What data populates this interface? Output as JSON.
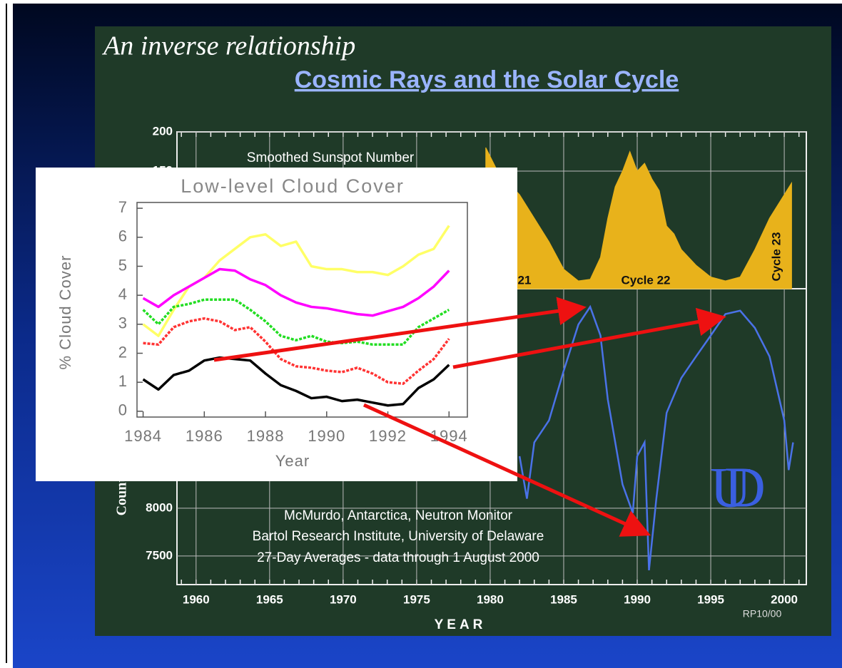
{
  "slide": {
    "title": "An inverse relationship",
    "heading": "Cosmic Rays and the Solar Cycle",
    "logo": "UD"
  },
  "chart_data": [
    {
      "type": "line",
      "title": "Low-level Cloud Cover",
      "x_label": "Year",
      "y_label": "% Cloud Cover",
      "x": [
        1984,
        1984.5,
        1985,
        1985.5,
        1986,
        1986.5,
        1987,
        1987.5,
        1988,
        1988.5,
        1989,
        1989.5,
        1990,
        1990.5,
        1991,
        1991.5,
        1992,
        1992.5,
        1993,
        1993.5,
        1994
      ],
      "xlim": [
        1983.8,
        1994.6
      ],
      "xticks": [
        1984,
        1986,
        1988,
        1990,
        1992,
        1994
      ],
      "ylim": [
        -0.2,
        7.2
      ],
      "yticks": [
        0,
        1,
        2,
        3,
        4,
        5,
        6,
        7
      ],
      "series": [
        {
          "color": "#ffff66",
          "dashed": false,
          "values": [
            3.0,
            2.6,
            3.5,
            4.3,
            4.6,
            5.2,
            5.6,
            6.0,
            6.1,
            5.7,
            5.85,
            5.0,
            4.9,
            4.9,
            4.8,
            4.8,
            4.7,
            5.0,
            5.4,
            5.6,
            6.4
          ]
        },
        {
          "color": "#ff00ff",
          "dashed": false,
          "values": [
            3.9,
            3.6,
            4.0,
            4.3,
            4.6,
            4.9,
            4.85,
            4.55,
            4.35,
            4.0,
            3.75,
            3.6,
            3.55,
            3.45,
            3.35,
            3.3,
            3.45,
            3.6,
            3.9,
            4.3,
            4.85
          ]
        },
        {
          "color": "#22dd22",
          "dashed": true,
          "values": [
            3.5,
            3.0,
            3.6,
            3.7,
            3.85,
            3.85,
            3.85,
            3.5,
            3.1,
            2.6,
            2.45,
            2.6,
            2.4,
            2.35,
            2.4,
            2.3,
            2.3,
            2.3,
            2.9,
            3.2,
            3.5
          ]
        },
        {
          "color": "#ff3333",
          "dashed": true,
          "values": [
            2.35,
            2.3,
            2.9,
            3.1,
            3.2,
            3.1,
            2.8,
            2.9,
            2.4,
            1.8,
            1.55,
            1.5,
            1.4,
            1.35,
            1.5,
            1.3,
            1.0,
            0.95,
            1.4,
            1.8,
            2.5
          ]
        },
        {
          "color": "#000000",
          "dashed": false,
          "values": [
            1.1,
            0.75,
            1.25,
            1.4,
            1.75,
            1.85,
            1.8,
            1.75,
            1.3,
            0.9,
            0.7,
            0.45,
            0.5,
            0.35,
            0.4,
            0.3,
            0.2,
            0.25,
            0.8,
            1.1,
            1.6
          ]
        }
      ]
    },
    {
      "type": "line",
      "x_label": "YEAR",
      "y_label": "Counts/",
      "xlim": [
        1958.7,
        2001.5
      ],
      "xticks": [
        1960,
        1965,
        1970,
        1975,
        1980,
        1985,
        1990,
        1995,
        2000
      ],
      "ylim": [
        0,
        200
      ],
      "yticks": [
        150,
        200
      ],
      "y2lim": [
        7200,
        10300
      ],
      "y2ticks": [
        7500,
        8000
      ],
      "series": [
        {
          "name": "Smoothed Sunspot Number",
          "color": "#e8b21b",
          "fill": true,
          "x": [
            1979.7,
            1980.5,
            1981,
            1982,
            1983,
            1984,
            1985,
            1986,
            1986.8,
            1987.5,
            1988,
            1988.5,
            1989,
            1989.5,
            1990,
            1990.5,
            1991,
            1991.5,
            1992,
            1992.5,
            1993,
            1994,
            1995,
            1996,
            1997,
            1998,
            1999,
            2000,
            2000.5
          ],
          "values": [
            180,
            150,
            140,
            120,
            90,
            60,
            25,
            10,
            12,
            40,
            90,
            130,
            150,
            175,
            150,
            160,
            140,
            125,
            80,
            70,
            50,
            30,
            15,
            10,
            15,
            50,
            90,
            120,
            135
          ]
        },
        {
          "axis": "y2",
          "color": "#4a72e8",
          "fill": false,
          "x": [
            1982,
            1982.5,
            1983,
            1984,
            1985,
            1986,
            1986.8,
            1987.5,
            1988,
            1989,
            1989.7,
            1990,
            1990.5,
            1990.8,
            1991.3,
            1992,
            1993,
            1994,
            1995,
            1996,
            1997,
            1998,
            1999,
            2000,
            2000.3,
            2000.6
          ],
          "values": [
            8545,
            8100,
            8690,
            8920,
            9440,
            9925,
            10110,
            9810,
            9140,
            8250,
            7950,
            8545,
            8690,
            7350,
            8100,
            9000,
            9365,
            9590,
            9810,
            10035,
            10070,
            9890,
            9590,
            8920,
            8400,
            8690
          ]
        }
      ],
      "annotations": [
        "21",
        "Cycle 22",
        "Cycle 23",
        "McMurdo, Antarctica, Neutron Monitor",
        "Bartol Research Institute, University of Delaware",
        "27-Day Averages - data through 1 August 2000",
        "RP10/00"
      ]
    }
  ]
}
